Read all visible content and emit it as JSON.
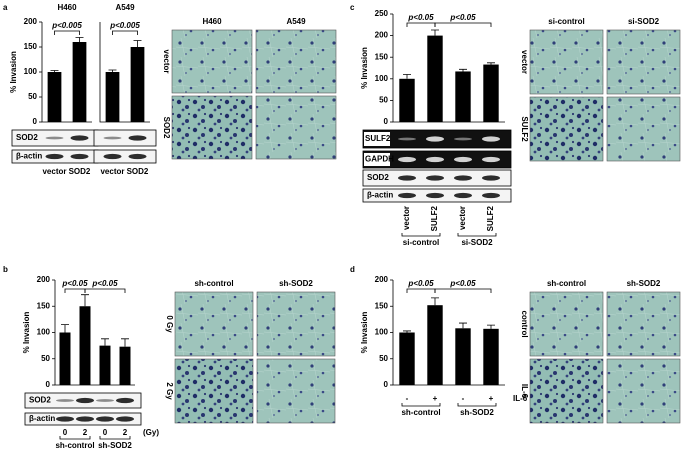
{
  "chart_data": [
    {
      "type": "bar",
      "title": "H460",
      "ylabel": "% Invasion",
      "categories": [
        "vector",
        "SOD2"
      ],
      "values": [
        100,
        160
      ],
      "errors": [
        3,
        9
      ],
      "color": "#000000",
      "ylim": [
        0,
        200
      ],
      "yticks": [
        0,
        50,
        100,
        150,
        200
      ],
      "annotations": [
        "p<0.005"
      ]
    },
    {
      "type": "bar",
      "title": "A549",
      "categories": [
        "vector",
        "SOD2"
      ],
      "values": [
        100,
        150
      ],
      "errors": [
        4,
        13
      ],
      "color": "#000000",
      "ylim": [
        0,
        200
      ],
      "annotations": [
        "p<0.005"
      ]
    },
    {
      "type": "bar",
      "ylabel": "% Invasion",
      "categories": [
        "0",
        "2",
        "0",
        "2"
      ],
      "x_unit": "(Gy)",
      "groups": [
        "sh-control",
        "sh-SOD2"
      ],
      "values": [
        100,
        150,
        75,
        73
      ],
      "errors": [
        15,
        22,
        13,
        15
      ],
      "color": "#000000",
      "ylim": [
        0,
        200
      ],
      "yticks": [
        0,
        50,
        100,
        150,
        200
      ],
      "annotations": [
        "p<0.05",
        "p<0.05"
      ]
    },
    {
      "type": "bar",
      "ylabel": "% Invasion",
      "categories": [
        "vector",
        "SULF2",
        "vector",
        "SULF2"
      ],
      "groups": [
        "si-control",
        "si-SOD2"
      ],
      "values": [
        100,
        200,
        117,
        133
      ],
      "errors": [
        10,
        13,
        5,
        4
      ],
      "color": "#000000",
      "ylim": [
        0,
        250
      ],
      "yticks": [
        0,
        50,
        100,
        150,
        200,
        250
      ],
      "annotations": [
        "p<0.05",
        "p<0.05"
      ]
    },
    {
      "type": "bar",
      "ylabel": "% Invasion",
      "categories": [
        "-",
        "+",
        "-",
        "+"
      ],
      "x_unit": "IL-6",
      "groups": [
        "sh-control",
        "sh-SOD2"
      ],
      "values": [
        100,
        152,
        108,
        107
      ],
      "errors": [
        3,
        14,
        10,
        7
      ],
      "color": "#000000",
      "ylim": [
        0,
        200
      ],
      "yticks": [
        0,
        50,
        100,
        150,
        200
      ],
      "annotations": [
        "p<0.05",
        "p<0.05"
      ]
    }
  ],
  "panels": [
    {
      "letter": "a",
      "blots": [
        "SOD2",
        "β-actin"
      ],
      "image_columns": [
        "H460",
        "A549"
      ],
      "image_rows": [
        "vector",
        "SOD2"
      ]
    },
    {
      "letter": "b",
      "blots": [
        "SOD2",
        "β-actin"
      ],
      "image_columns": [
        "sh-control",
        "sh-SOD2"
      ],
      "image_rows": [
        "0 Gy",
        "2 Gy"
      ]
    },
    {
      "letter": "c",
      "blots": [
        "SULF2",
        "GAPDH",
        "SOD2",
        "β-actin"
      ],
      "image_columns": [
        "si-control",
        "si-SOD2"
      ],
      "image_rows": [
        "vector",
        "SULF2"
      ]
    },
    {
      "letter": "d",
      "image_columns": [
        "sh-control",
        "sh-SOD2"
      ],
      "image_rows": [
        "control",
        "IL-6"
      ]
    }
  ]
}
